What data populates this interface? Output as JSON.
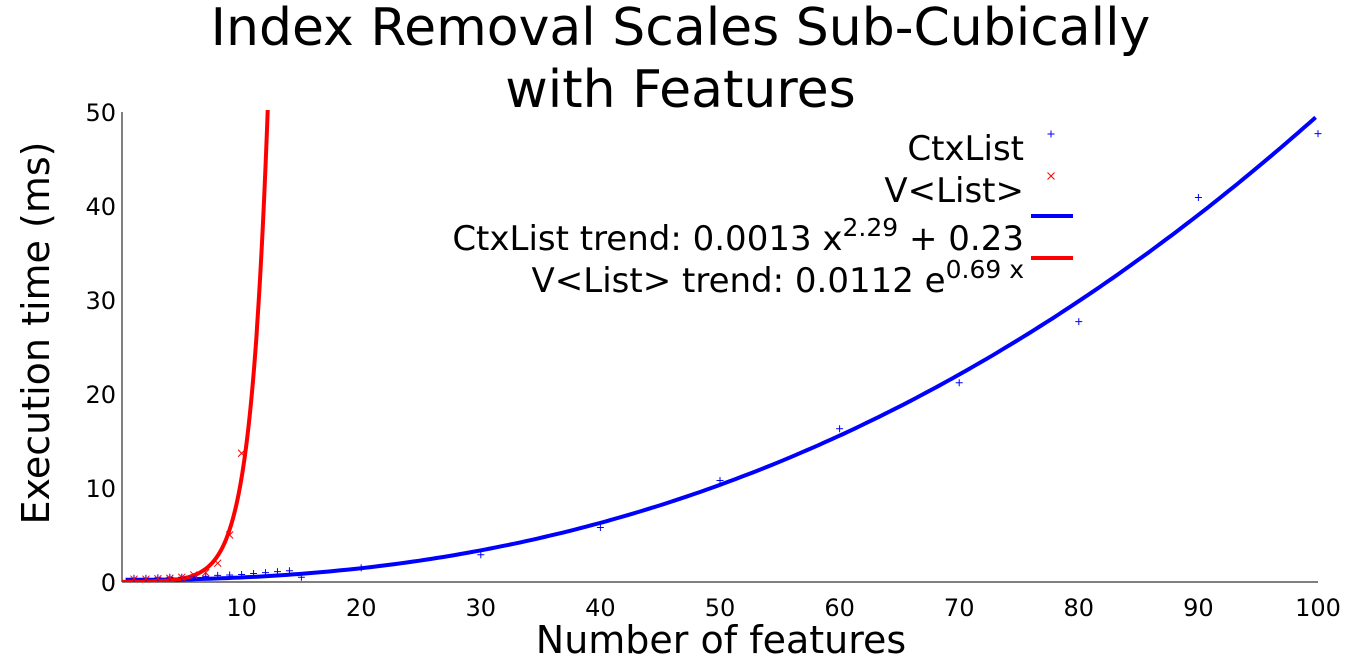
{
  "chart_data": {
    "type": "scatter",
    "title_line1": "Index Removal Scales Sub-Cubically",
    "title_line2": "with Features",
    "xlabel": "Number of features",
    "ylabel": "Execution time (ms)",
    "xlim": [
      0,
      100
    ],
    "ylim": [
      0,
      50
    ],
    "xticks": [
      10,
      20,
      30,
      40,
      50,
      60,
      70,
      80,
      90,
      100
    ],
    "yticks": [
      0,
      10,
      20,
      30,
      40,
      50
    ],
    "grid": false,
    "legend_position": "top-right",
    "series": [
      {
        "name": "CtxList",
        "kind": "points",
        "marker": "plus",
        "color": "#0000ff",
        "x": [
          1,
          2,
          3,
          4,
          5,
          6,
          7,
          8,
          9,
          10,
          11,
          12,
          13,
          14,
          15,
          20,
          30,
          40,
          50,
          60,
          70,
          80,
          90,
          100
        ],
        "y": [
          0.4,
          0.4,
          0.45,
          0.5,
          0.5,
          0.55,
          0.6,
          0.7,
          0.75,
          0.8,
          0.9,
          1.0,
          1.1,
          1.2,
          0.5,
          1.5,
          2.9,
          5.8,
          10.8,
          16.3,
          21.2,
          27.7,
          40.9,
          47.7
        ]
      },
      {
        "name": "V<List>",
        "kind": "points",
        "marker": "x",
        "color": "#ff0000",
        "x": [
          1,
          2,
          3,
          4,
          5,
          6,
          7,
          8,
          9,
          10
        ],
        "y": [
          0.3,
          0.3,
          0.35,
          0.4,
          0.5,
          0.75,
          1.0,
          2.0,
          5.0,
          13.7
        ]
      },
      {
        "name": "CtxList trend: 0.0013 x^2.29 + 0.23",
        "kind": "trend",
        "color": "#0000ff",
        "model": "power",
        "a": 0.0013,
        "b": 2.29,
        "c": 0.23
      },
      {
        "name": "V<List> trend: 0.0112 e^0.69 x",
        "kind": "trend",
        "color": "#ff0000",
        "model": "exponential",
        "a": 0.0112,
        "b": 0.69
      }
    ],
    "legend": [
      {
        "base": "CtxList",
        "sup": "",
        "tail": ""
      },
      {
        "base": "V<List>",
        "sup": "",
        "tail": ""
      },
      {
        "base": "CtxList trend: 0.0013 x",
        "sup": "2.29",
        "tail": " + 0.23"
      },
      {
        "base": "V<List> trend: 0.0112 e",
        "sup": "0.69 x",
        "tail": ""
      }
    ]
  }
}
